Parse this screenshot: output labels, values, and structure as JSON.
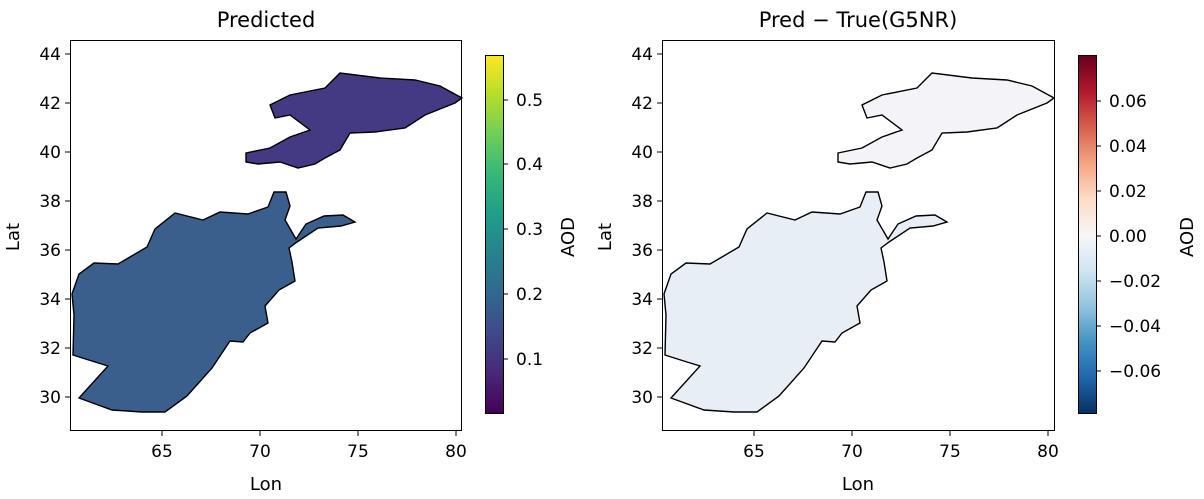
{
  "chart_data": [
    {
      "type": "heatmap",
      "title": "Predicted",
      "xlabel": "Lon",
      "ylabel": "Lat",
      "xlim": [
        60.5,
        80.5
      ],
      "ylim": [
        28.7,
        44.7
      ],
      "xticks": [
        65,
        70,
        75,
        80
      ],
      "yticks": [
        30,
        32,
        34,
        36,
        38,
        40,
        42,
        44
      ],
      "colorbar": {
        "label": "AOD",
        "colormap": "viridis",
        "range": [
          0.02,
          0.57
        ],
        "ticks": [
          0.1,
          0.2,
          0.3,
          0.4,
          0.5
        ]
      },
      "regions": [
        {
          "name": "Afghanistan",
          "color": "#3a5f8c"
        },
        {
          "name": "Kyrgyzstan",
          "color": "#433a83"
        }
      ]
    },
    {
      "type": "heatmap",
      "title": "Pred − True(G5NR)",
      "xlabel": "Lon",
      "ylabel": "Lat",
      "xlim": [
        60.5,
        80.5
      ],
      "ylim": [
        28.7,
        44.7
      ],
      "xticks": [
        65,
        70,
        75,
        80
      ],
      "yticks": [
        30,
        32,
        34,
        36,
        38,
        40,
        42,
        44
      ],
      "colorbar": {
        "label": "AOD",
        "colormap": "RdBu_r",
        "range": [
          -0.08,
          0.08
        ],
        "ticks": [
          0.06,
          0.04,
          0.02,
          0.0,
          -0.02,
          -0.04,
          -0.06
        ],
        "tick_labels": [
          "0.06",
          "0.04",
          "0.02",
          "0.00",
          "−0.02",
          "−0.04",
          "−0.06"
        ]
      },
      "regions": [
        {
          "name": "Afghanistan",
          "color": "#e7eef5"
        },
        {
          "name": "Kyrgyzstan",
          "color": "#f4f4f8"
        }
      ]
    }
  ],
  "colors": {
    "viridis": [
      "#440154",
      "#482878",
      "#3e4989",
      "#31688e",
      "#26828e",
      "#1f9e89",
      "#35b779",
      "#6ece58",
      "#b5de2b",
      "#fde725"
    ],
    "rdbu": [
      "#053061",
      "#2166ac",
      "#4393c3",
      "#92c5de",
      "#d1e5f0",
      "#f7f7f7",
      "#fddbc7",
      "#f4a582",
      "#d6604d",
      "#b2182b",
      "#67001f"
    ]
  }
}
